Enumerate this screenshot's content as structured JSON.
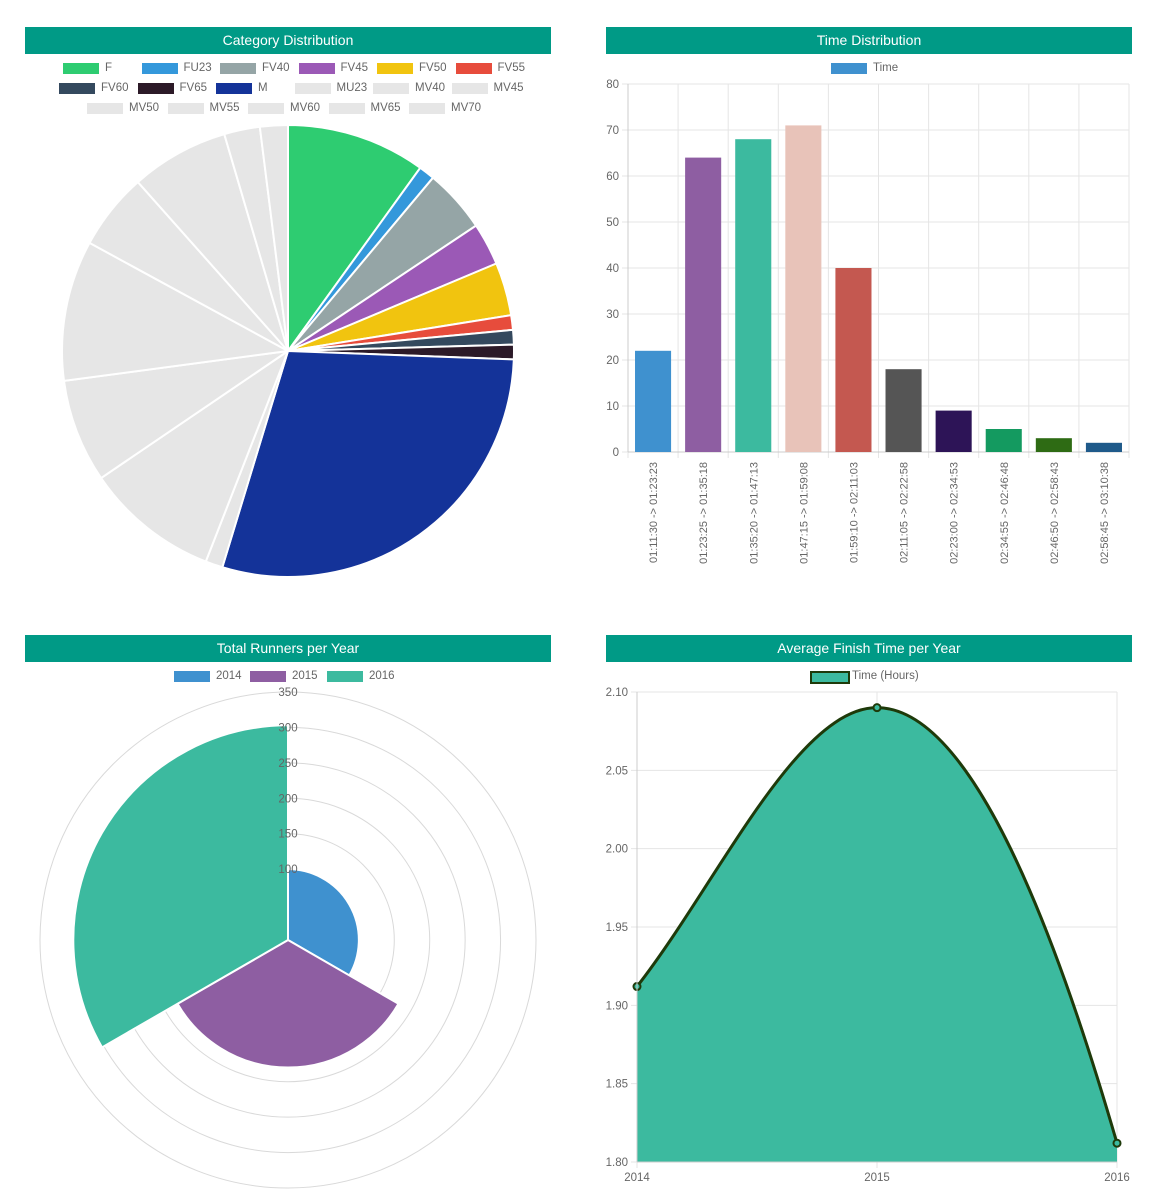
{
  "colors": {
    "header_bg": "#009a86",
    "header_text": "#ffffff",
    "grid": "#e5e5e5",
    "axis_text": "#666666"
  },
  "headers": {
    "category": "Category Distribution",
    "time": "Time Distribution",
    "runners": "Total Runners per Year",
    "avg": "Average Finish Time per Year"
  },
  "chart_data": [
    {
      "type": "pie",
      "title": "Category Distribution",
      "legend_position": "top",
      "categories": [
        "F",
        "FU23",
        "FV40",
        "FV45",
        "FV50",
        "FV55",
        "FV60",
        "FV65",
        "M",
        "MU23",
        "MV40",
        "MV45",
        "MV50",
        "MV55",
        "MV60",
        "MV65",
        "MV70"
      ],
      "values": [
        10.5,
        1.2,
        4.8,
        3.2,
        4.0,
        1.1,
        1.1,
        1.1,
        30.7,
        1.3,
        10.1,
        7.8,
        10.6,
        5.8,
        7.4,
        2.7,
        2.1
      ],
      "colors": [
        "#2ecc71",
        "#3498db",
        "#95a5a6",
        "#9b59b6",
        "#f1c40f",
        "#e74c3c",
        "#34495e",
        "#2c1a28",
        "#143399",
        "#e6e6e6",
        "#e6e6e6",
        "#e6e6e6",
        "#e6e6e6",
        "#e6e6e6",
        "#e6e6e6",
        "#e6e6e6",
        "#e6e6e6"
      ]
    },
    {
      "type": "bar",
      "title": "Time Distribution",
      "legend": [
        "Time"
      ],
      "legend_color": "#3f91cf",
      "categories": [
        "01:11:30 -> 01:23:23",
        "01:23:25 -> 01:35:18",
        "01:35:20 -> 01:47:13",
        "01:47:15 -> 01:59:08",
        "01:59:10 -> 02:11:03",
        "02:11:05 -> 02:22:58",
        "02:23:00 -> 02:34:53",
        "02:34:55 -> 02:46:48",
        "02:46:50 -> 02:58:43",
        "02:58:45 -> 03:10:38"
      ],
      "values": [
        22,
        64,
        68,
        71,
        40,
        18,
        9,
        5,
        3,
        2
      ],
      "colors": [
        "#3f91cf",
        "#8e5ea2",
        "#3cba9f",
        "#e8c3b9",
        "#c45850",
        "#555555",
        "#2d1457",
        "#149a60",
        "#2e6b14",
        "#1f5a8a"
      ],
      "ylim": [
        0,
        80
      ],
      "yticks": [
        0,
        10,
        20,
        30,
        40,
        50,
        60,
        70,
        80
      ]
    },
    {
      "type": "polarArea",
      "title": "Total Runners per Year",
      "categories": [
        "2014",
        "2015",
        "2016"
      ],
      "values": [
        100,
        180,
        303
      ],
      "colors": [
        "#3f91cf",
        "#8e5ea2",
        "#3cba9f"
      ],
      "rlim": [
        0,
        350
      ],
      "rticks": [
        "350",
        "300",
        "250",
        "200",
        "150",
        "100"
      ]
    },
    {
      "type": "area",
      "title": "Average Finish Time per Year",
      "legend": [
        "Time (Hours)"
      ],
      "fill_color": "#3cba9f",
      "line_color": "#1e3a0a",
      "x": [
        "2014",
        "2015",
        "2016"
      ],
      "values": [
        1.912,
        2.09,
        1.812
      ],
      "ylim": [
        1.8,
        2.1
      ],
      "yticks": [
        "2.10",
        "2.05",
        "2.00",
        "1.95",
        "1.90",
        "1.85",
        "1.80"
      ]
    }
  ]
}
